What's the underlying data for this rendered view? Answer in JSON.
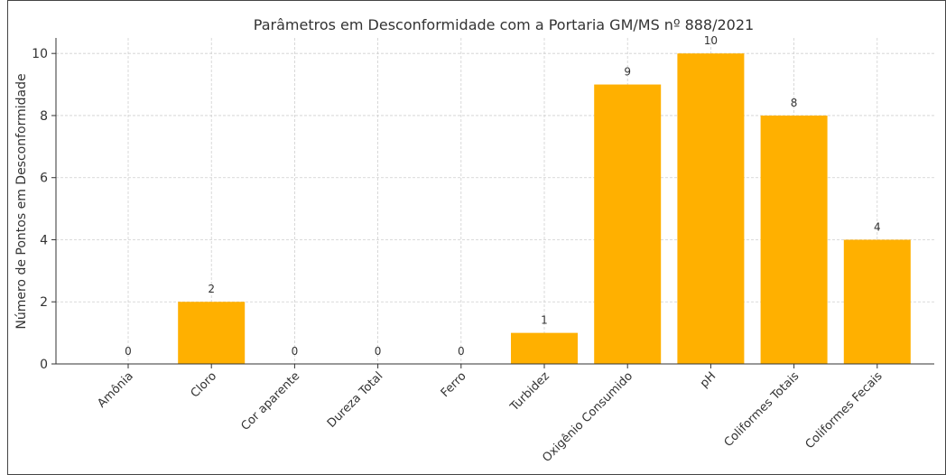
{
  "chart_data": {
    "type": "bar",
    "title": "Parâmetros em Desconformidade com a Portaria GM/MS nº 888/2021",
    "y_label": "Número de Pontos em Desconformidade",
    "categories": [
      "Amônia",
      "Cloro",
      "Cor aparente",
      "Dureza Total",
      "Ferro",
      "Turbidez",
      "Oxigênio Consumido",
      "pH",
      "Coliformes Totais",
      "Coliformes Fecais"
    ],
    "values": [
      0,
      2,
      0,
      0,
      0,
      1,
      9,
      10,
      8,
      4
    ],
    "color": "#ffb000",
    "ylim": [
      0,
      10.5
    ],
    "yticks": [
      0,
      2,
      4,
      6,
      8,
      10
    ],
    "grid": true
  }
}
